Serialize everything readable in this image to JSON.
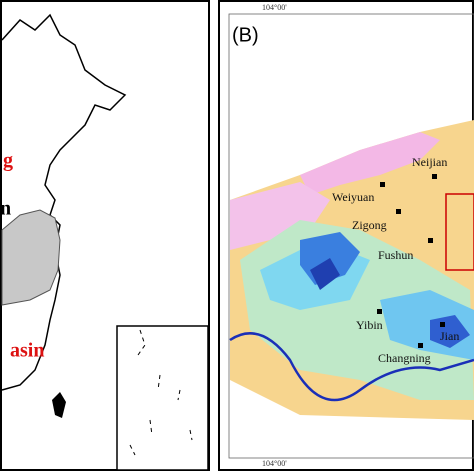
{
  "left_panel": {
    "labels": [
      "g",
      "n",
      "asin"
    ]
  },
  "right_panel": {
    "panel_label": "(B)",
    "top_coordinate": "104°00'",
    "bottom_coordinate": "104°00'",
    "cities": [
      "Weiyuan",
      "Neijian",
      "Zigong",
      "Fushun",
      "Yibin",
      "Jian",
      "Changning"
    ]
  }
}
